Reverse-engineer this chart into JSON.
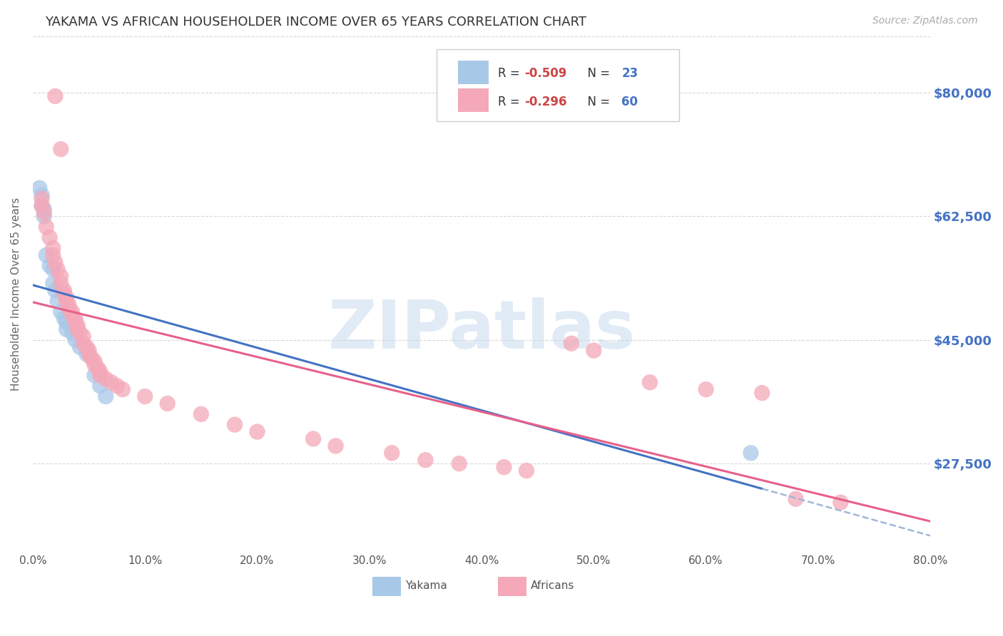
{
  "title": "YAKAMA VS AFRICAN HOUSEHOLDER INCOME OVER 65 YEARS CORRELATION CHART",
  "source": "Source: ZipAtlas.com",
  "ylabel": "Householder Income Over 65 years",
  "ytick_labels": [
    "$27,500",
    "$45,000",
    "$62,500",
    "$80,000"
  ],
  "ytick_values": [
    27500,
    45000,
    62500,
    80000
  ],
  "xlim": [
    0.0,
    0.8
  ],
  "ylim": [
    15000,
    88000
  ],
  "yakama_color": "#a8c8e8",
  "african_color": "#f4a8b8",
  "trendline_yakama_color": "#4472c4",
  "trendline_african_color": "#e8608a",
  "trendline_dashed_color": "#a0b8d8",
  "watermark": "ZIPatlas",
  "background_color": "#ffffff",
  "grid_color": "#d8d8d8",
  "axis_label_color": "#4472c4",
  "legend_r_color": "#cc4444",
  "legend_n_color": "#4472c4",
  "yakama_points": [
    [
      0.006,
      66500
    ],
    [
      0.008,
      65500
    ],
    [
      0.008,
      64000
    ],
    [
      0.01,
      63500
    ],
    [
      0.01,
      62500
    ],
    [
      0.012,
      57000
    ],
    [
      0.015,
      55500
    ],
    [
      0.018,
      55000
    ],
    [
      0.018,
      53000
    ],
    [
      0.02,
      52000
    ],
    [
      0.022,
      50500
    ],
    [
      0.025,
      49000
    ],
    [
      0.028,
      48000
    ],
    [
      0.03,
      47500
    ],
    [
      0.03,
      46500
    ],
    [
      0.035,
      46000
    ],
    [
      0.038,
      45000
    ],
    [
      0.042,
      44000
    ],
    [
      0.048,
      43000
    ],
    [
      0.055,
      40000
    ],
    [
      0.06,
      38500
    ],
    [
      0.065,
      37000
    ],
    [
      0.64,
      29000
    ]
  ],
  "african_points": [
    [
      0.02,
      79500
    ],
    [
      0.025,
      72000
    ],
    [
      0.008,
      65000
    ],
    [
      0.008,
      64000
    ],
    [
      0.01,
      63000
    ],
    [
      0.012,
      61000
    ],
    [
      0.015,
      59500
    ],
    [
      0.018,
      58000
    ],
    [
      0.018,
      57000
    ],
    [
      0.02,
      56000
    ],
    [
      0.022,
      55000
    ],
    [
      0.025,
      54000
    ],
    [
      0.025,
      53000
    ],
    [
      0.028,
      52000
    ],
    [
      0.028,
      51500
    ],
    [
      0.03,
      51000
    ],
    [
      0.03,
      50500
    ],
    [
      0.032,
      50000
    ],
    [
      0.032,
      49500
    ],
    [
      0.035,
      49000
    ],
    [
      0.035,
      48500
    ],
    [
      0.038,
      48000
    ],
    [
      0.038,
      47500
    ],
    [
      0.04,
      47000
    ],
    [
      0.04,
      46500
    ],
    [
      0.042,
      46000
    ],
    [
      0.045,
      45500
    ],
    [
      0.045,
      44500
    ],
    [
      0.048,
      44000
    ],
    [
      0.05,
      43500
    ],
    [
      0.05,
      43000
    ],
    [
      0.052,
      42500
    ],
    [
      0.055,
      42000
    ],
    [
      0.055,
      41500
    ],
    [
      0.058,
      41000
    ],
    [
      0.06,
      40500
    ],
    [
      0.06,
      40000
    ],
    [
      0.065,
      39500
    ],
    [
      0.07,
      39000
    ],
    [
      0.075,
      38500
    ],
    [
      0.08,
      38000
    ],
    [
      0.1,
      37000
    ],
    [
      0.12,
      36000
    ],
    [
      0.15,
      34500
    ],
    [
      0.18,
      33000
    ],
    [
      0.2,
      32000
    ],
    [
      0.25,
      31000
    ],
    [
      0.27,
      30000
    ],
    [
      0.32,
      29000
    ],
    [
      0.35,
      28000
    ],
    [
      0.38,
      27500
    ],
    [
      0.42,
      27000
    ],
    [
      0.44,
      26500
    ],
    [
      0.48,
      44500
    ],
    [
      0.5,
      43500
    ],
    [
      0.55,
      39000
    ],
    [
      0.6,
      38000
    ],
    [
      0.65,
      37500
    ],
    [
      0.68,
      22500
    ],
    [
      0.72,
      22000
    ]
  ]
}
